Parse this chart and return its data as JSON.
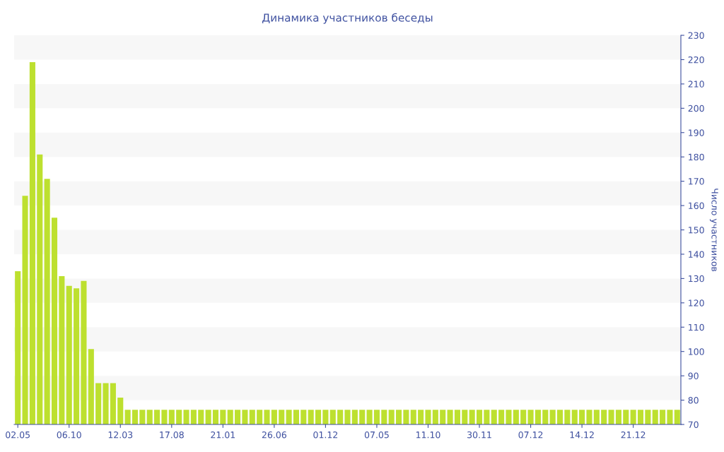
{
  "chart_data": {
    "type": "bar",
    "title": "Динамика участников беседы",
    "ylabel": "Число участников",
    "categories": [
      "02.05",
      null,
      null,
      null,
      null,
      null,
      null,
      "06.10",
      null,
      null,
      null,
      null,
      null,
      null,
      "12.03",
      null,
      null,
      null,
      null,
      null,
      null,
      "17.08",
      null,
      null,
      null,
      null,
      null,
      null,
      "21.01",
      null,
      null,
      null,
      null,
      null,
      null,
      "26.06",
      null,
      null,
      null,
      null,
      null,
      null,
      "01.12",
      null,
      null,
      null,
      null,
      null,
      null,
      "07.05",
      null,
      null,
      null,
      null,
      null,
      null,
      "11.10",
      null,
      null,
      null,
      null,
      null,
      null,
      "30.11",
      null,
      null,
      null,
      null,
      null,
      null,
      "07.12",
      null,
      null,
      null,
      null,
      null,
      null,
      "14.12",
      null,
      null,
      null,
      null,
      null,
      null,
      "21.12",
      null,
      null,
      null,
      null,
      null,
      null
    ],
    "values": [
      133,
      164,
      219,
      181,
      171,
      155,
      131,
      127,
      126,
      129,
      101,
      87,
      87,
      87,
      81,
      76,
      76,
      76,
      76,
      76,
      76,
      76,
      76,
      76,
      76,
      76,
      76,
      76,
      76,
      76,
      76,
      76,
      76,
      76,
      76,
      76,
      76,
      76,
      76,
      76,
      76,
      76,
      76,
      76,
      76,
      76,
      76,
      76,
      76,
      76,
      76,
      76,
      76,
      76,
      76,
      76,
      76,
      76,
      76,
      76,
      76,
      76,
      76,
      76,
      76,
      76,
      76,
      76,
      76,
      76,
      76,
      76,
      76,
      76,
      76,
      76,
      76,
      76,
      76,
      76,
      76,
      76,
      76,
      76,
      76,
      76,
      76,
      76,
      76,
      76,
      76
    ],
    "color": "#bde02f",
    "ylim": [
      70,
      230
    ],
    "yticks": [
      70,
      80,
      90,
      100,
      110,
      120,
      130,
      140,
      150,
      160,
      170,
      180,
      190,
      200,
      210,
      220,
      230
    ],
    "bands": [
      {
        "axis": "y",
        "from": 80,
        "to": 90,
        "color": "#f7f7f7"
      },
      {
        "axis": "y",
        "from": 100,
        "to": 110,
        "color": "#f7f7f7"
      },
      {
        "axis": "y",
        "from": 120,
        "to": 130,
        "color": "#f7f7f7"
      },
      {
        "axis": "y",
        "from": 140,
        "to": 150,
        "color": "#f7f7f7"
      },
      {
        "axis": "y",
        "from": 160,
        "to": 170,
        "color": "#f7f7f7"
      },
      {
        "axis": "y",
        "from": 180,
        "to": 190,
        "color": "#f7f7f7"
      },
      {
        "axis": "y",
        "from": 200,
        "to": 210,
        "color": "#f7f7f7"
      },
      {
        "axis": "y",
        "from": 220,
        "to": 230,
        "color": "#f7f7f7"
      }
    ]
  }
}
